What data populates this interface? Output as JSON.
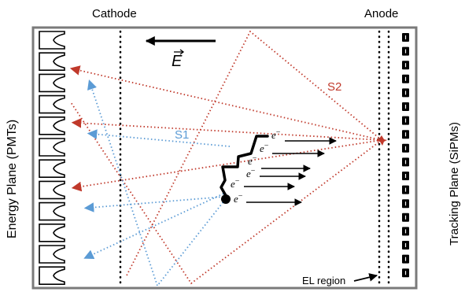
{
  "labels": {
    "cathode": "Cathode",
    "anode": "Anode",
    "field": "E",
    "s1": "S1",
    "s2": "S2",
    "electron": "e",
    "electron_charge": "−",
    "el_region": "EL region",
    "energy_plane": "Energy Plane (PMTs)",
    "tracking_plane": "Tracking Plane (SiPMs)"
  },
  "colors": {
    "frame": "#7a7a7a",
    "s1": "#5b9bd5",
    "s2": "#c0392b",
    "ink": "#000000"
  },
  "pmt_count": 12,
  "sipm_count": 18,
  "electron_count": 6
}
